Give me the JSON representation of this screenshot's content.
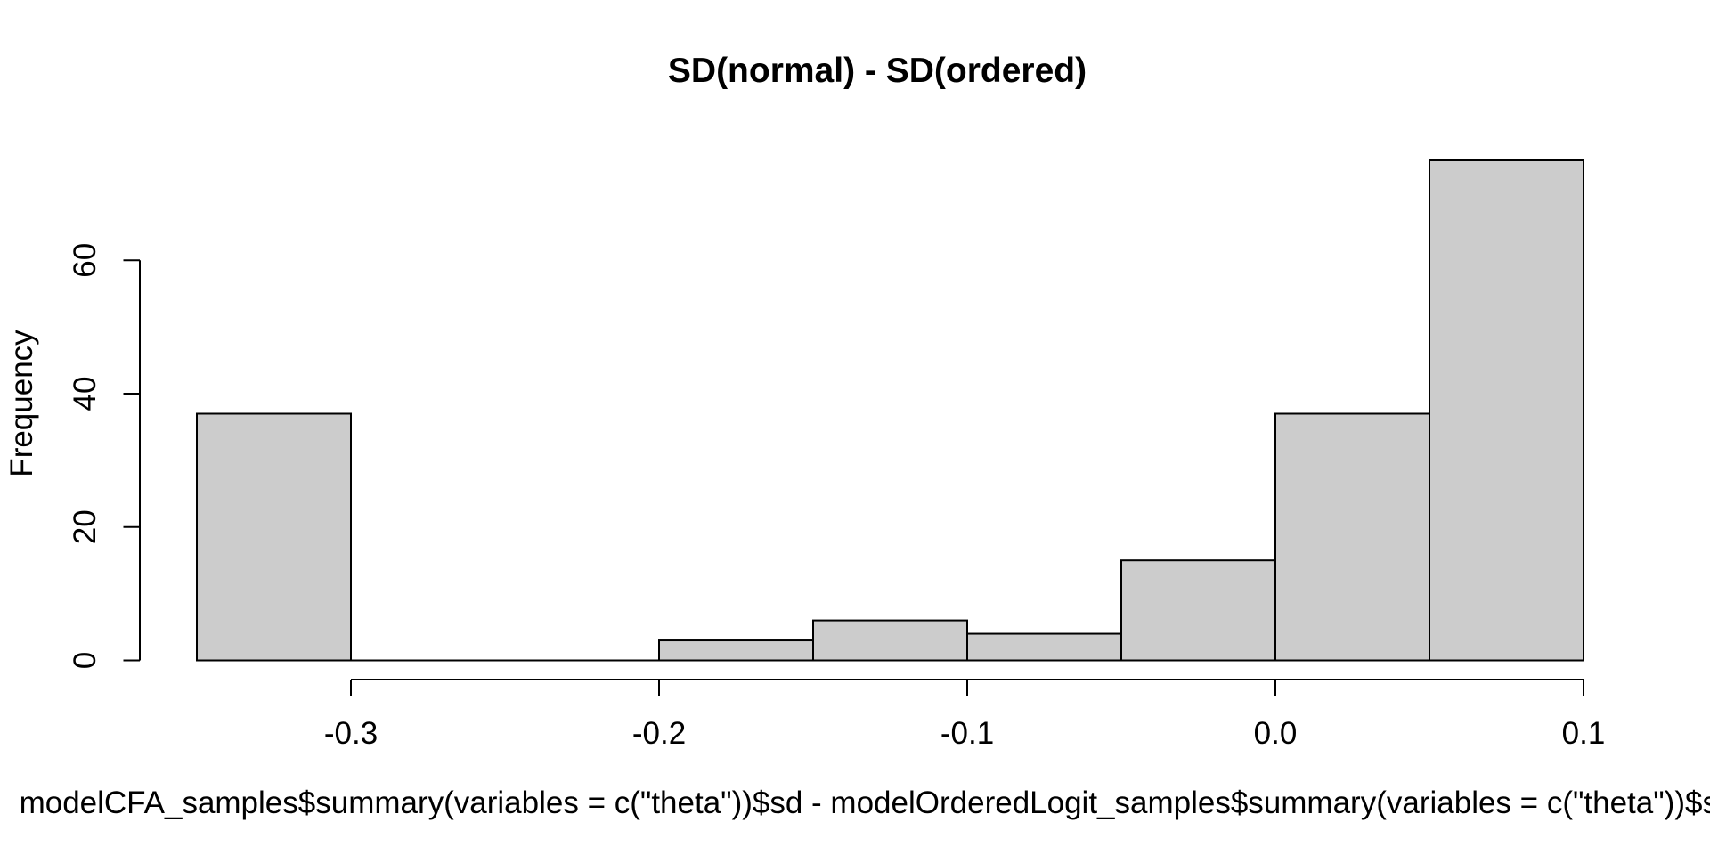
{
  "chart_data": {
    "type": "bar",
    "subtype": "histogram",
    "title": "SD(normal) - SD(ordered)",
    "xlabel": "modelCFA_samples$summary(variables = c(\"theta\"))$sd - modelOrderedLogit_samples$summary(variables = c(\"theta\"))$sd",
    "ylabel": "Frequency",
    "bin_width": 0.05,
    "bins": [
      {
        "from": -0.35,
        "to": -0.3,
        "count": 37
      },
      {
        "from": -0.3,
        "to": -0.25,
        "count": 0
      },
      {
        "from": -0.25,
        "to": -0.2,
        "count": 0
      },
      {
        "from": -0.2,
        "to": -0.15,
        "count": 3
      },
      {
        "from": -0.15,
        "to": -0.1,
        "count": 6
      },
      {
        "from": -0.1,
        "to": -0.05,
        "count": 4
      },
      {
        "from": -0.05,
        "to": 0.0,
        "count": 15
      },
      {
        "from": 0.0,
        "to": 0.05,
        "count": 37
      },
      {
        "from": 0.05,
        "to": 0.1,
        "count": 75
      }
    ],
    "x_ticks": [
      {
        "value": -0.3,
        "label": "-0.3"
      },
      {
        "value": -0.2,
        "label": "-0.2"
      },
      {
        "value": -0.1,
        "label": "-0.1"
      },
      {
        "value": 0.0,
        "label": "0.0"
      },
      {
        "value": 0.1,
        "label": "0.1"
      }
    ],
    "y_ticks": [
      {
        "value": 0,
        "label": "0"
      },
      {
        "value": 20,
        "label": "20"
      },
      {
        "value": 40,
        "label": "40"
      },
      {
        "value": 60,
        "label": "60"
      }
    ],
    "xlim": [
      -0.35,
      0.1
    ],
    "ylim": [
      0,
      75
    ],
    "grid": false,
    "legend": false,
    "bar_fill": "#CCCCCC",
    "bar_stroke": "#000000",
    "axis_color": "#000000",
    "text_color": "#000000",
    "background": "#FFFFFF"
  }
}
